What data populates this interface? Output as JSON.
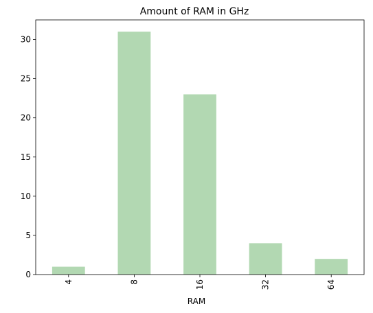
{
  "chart_data": {
    "type": "bar",
    "title": "Amount of RAM in GHz",
    "xlabel": "RAM",
    "ylabel": "",
    "categories": [
      "4",
      "8",
      "16",
      "32",
      "64"
    ],
    "values": [
      1,
      31,
      23,
      4,
      2
    ],
    "ylim": [
      0,
      32.5
    ],
    "yticks": [
      0,
      5,
      10,
      15,
      20,
      25,
      30
    ],
    "bar_color": "#b2d8b2",
    "grid": false,
    "legend": "none"
  }
}
